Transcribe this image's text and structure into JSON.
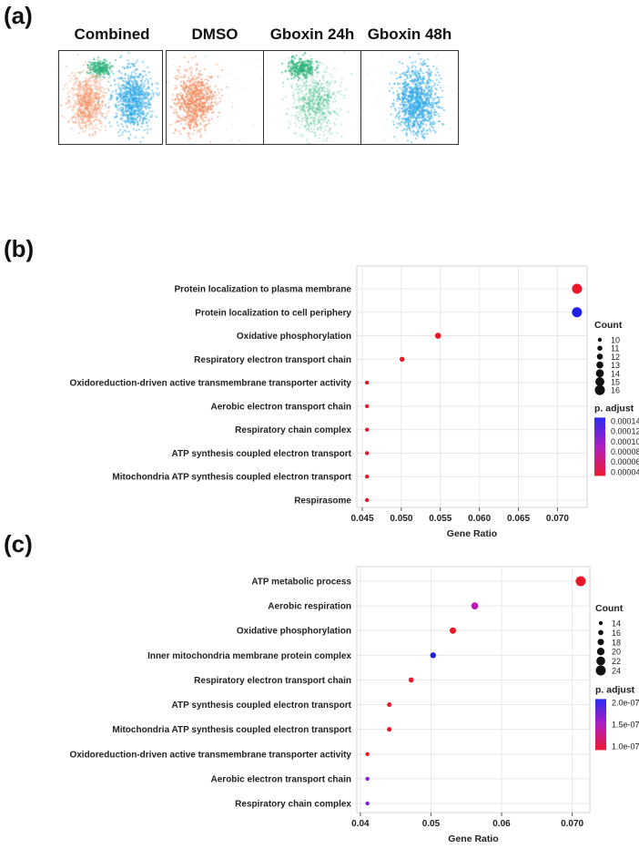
{
  "panel_a": {
    "label": "(a)",
    "titles": [
      "Combined",
      "DMSO",
      "Gboxin 24h",
      "Gboxin 48h"
    ],
    "colors": {
      "dmso": "#f08a5d",
      "gboxin24": "#2db37a",
      "gboxin48": "#2ea8e6"
    }
  },
  "panel_b": {
    "label": "(b)"
  },
  "panel_c": {
    "label": "(c)"
  },
  "chart_data": [
    {
      "type": "scatter",
      "id": "b",
      "xlabel": "Gene Ratio",
      "xlim": [
        0.0443,
        0.0738
      ],
      "xticks": [
        0.045,
        0.05,
        0.055,
        0.06,
        0.065,
        0.07
      ],
      "xtick_labels": [
        "0.045",
        "0.050",
        "0.055",
        "0.060",
        "0.065",
        "0.070"
      ],
      "terms": [
        {
          "label": "Protein localization to plasma membrane",
          "x": 0.0725,
          "count": 16,
          "color": "#e8182a"
        },
        {
          "label": "Protein localization to cell periphery",
          "x": 0.0725,
          "count": 16,
          "color": "#1f1fe6"
        },
        {
          "label": "Oxidative phosphorylation",
          "x": 0.0547,
          "count": 12,
          "color": "#e8182a"
        },
        {
          "label": "Respiratory electron transport chain",
          "x": 0.0501,
          "count": 11,
          "color": "#e8182a"
        },
        {
          "label": "Oxidoreduction-driven active transmembrane transporter activity",
          "x": 0.0456,
          "count": 10,
          "color": "#e8182a"
        },
        {
          "label": "Aerobic electron transport chain",
          "x": 0.0456,
          "count": 10,
          "color": "#e8182a"
        },
        {
          "label": "Respiratory chain complex",
          "x": 0.0456,
          "count": 10,
          "color": "#e8182a"
        },
        {
          "label": "ATP synthesis coupled electron transport",
          "x": 0.0456,
          "count": 10,
          "color": "#e8182a"
        },
        {
          "label": "Mitochondria ATP synthesis coupled electron transport",
          "x": 0.0456,
          "count": 10,
          "color": "#e8182a"
        },
        {
          "label": "Respirasome",
          "x": 0.0456,
          "count": 10,
          "color": "#e8182a"
        }
      ],
      "legend_count": {
        "title": "Count",
        "values": [
          10,
          11,
          12,
          13,
          14,
          15,
          16
        ]
      },
      "legend_padj": {
        "title": "p. adjust",
        "labels": [
          "0.00014",
          "0.00012",
          "0.00010",
          "0.00008",
          "0.00006",
          "0.00004"
        ]
      }
    },
    {
      "type": "scatter",
      "id": "c",
      "xlabel": "Gene Ratio",
      "xlim": [
        0.0395,
        0.0725
      ],
      "xticks": [
        0.04,
        0.05,
        0.06,
        0.07
      ],
      "xtick_labels": [
        "0.04",
        "0.05",
        "0.06",
        "0.070"
      ],
      "terms": [
        {
          "label": "ATP metabolic process",
          "x": 0.0712,
          "count": 24,
          "color": "#e8182a"
        },
        {
          "label": "Aerobic respiration",
          "x": 0.0562,
          "count": 19,
          "color": "#b81cb0"
        },
        {
          "label": "Oxidative phosphorylation",
          "x": 0.0531,
          "count": 18,
          "color": "#e8182a"
        },
        {
          "label": "Inner mitochondria membrane protein complex",
          "x": 0.0503,
          "count": 17,
          "color": "#1f1fd6"
        },
        {
          "label": "Respiratory electron transport chain",
          "x": 0.0472,
          "count": 16,
          "color": "#e8182a"
        },
        {
          "label": "ATP synthesis coupled electron transport",
          "x": 0.0441,
          "count": 15,
          "color": "#e8182a"
        },
        {
          "label": "Mitochondria ATP synthesis coupled electron transport",
          "x": 0.0441,
          "count": 15,
          "color": "#e8182a"
        },
        {
          "label": "Oxidoreduction-driven active transmembrane transporter activity",
          "x": 0.041,
          "count": 14,
          "color": "#e8182a"
        },
        {
          "label": "Aerobic electron transport chain",
          "x": 0.041,
          "count": 14,
          "color": "#7a1ee0"
        },
        {
          "label": "Respiratory chain complex",
          "x": 0.041,
          "count": 14,
          "color": "#7a1ee0"
        }
      ],
      "legend_count": {
        "title": "Count",
        "values": [
          14,
          16,
          18,
          20,
          22,
          24
        ]
      },
      "legend_padj": {
        "title": "p. adjust",
        "labels": [
          "2.0e-07",
          "1.5e-07",
          "1.0e-07"
        ]
      }
    }
  ]
}
